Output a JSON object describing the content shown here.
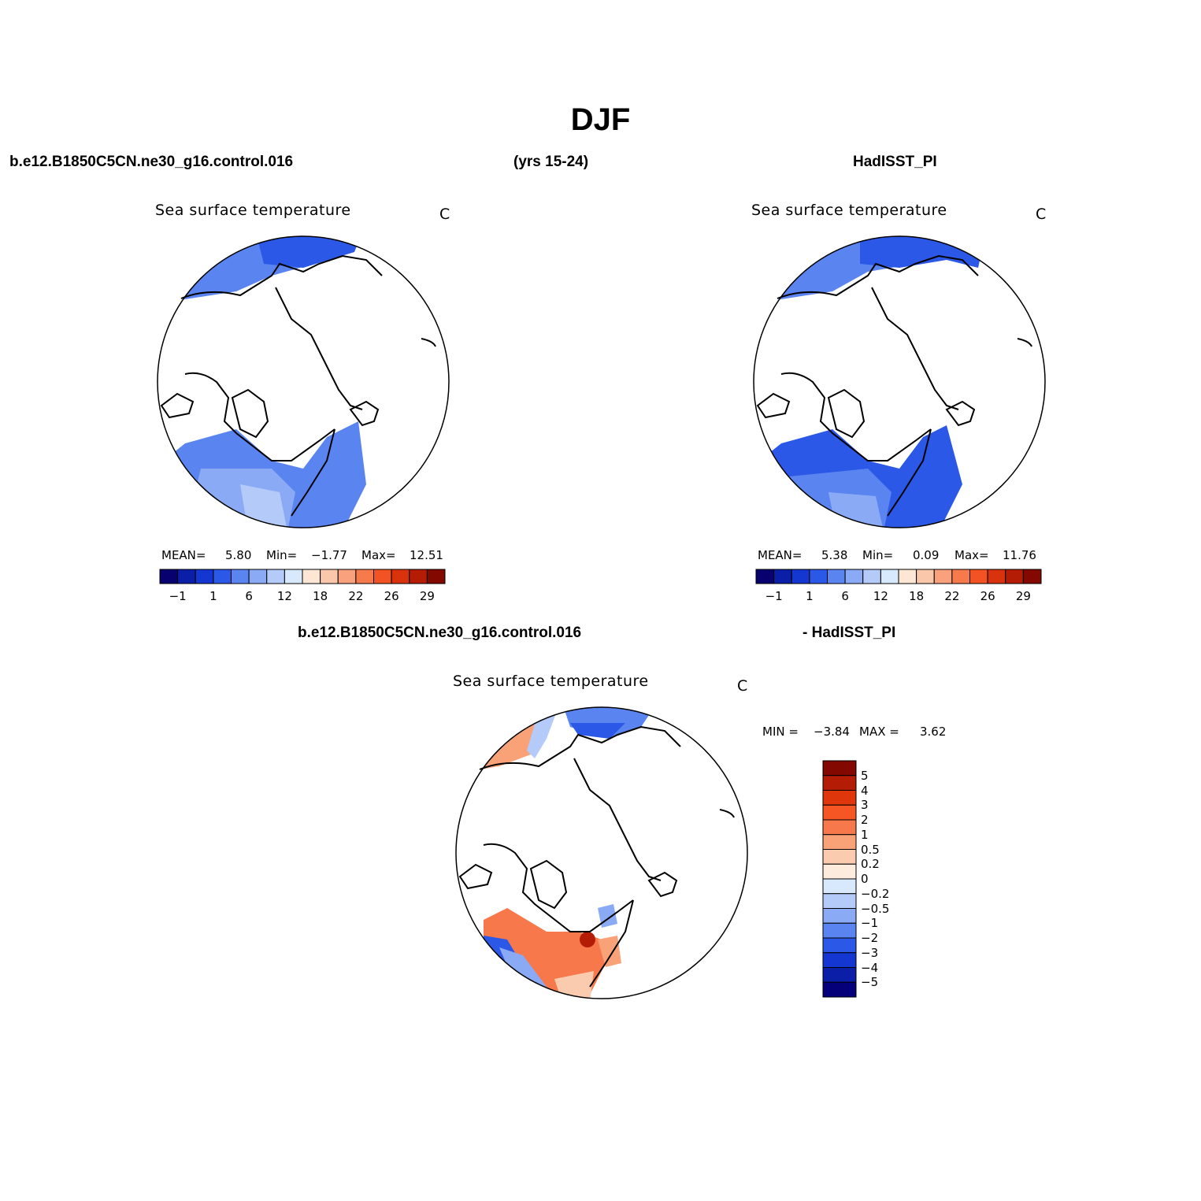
{
  "main_title": "DJF",
  "top_left_header": "b.e12.B1850C5CN.ne30_g16.control.016",
  "top_center_header": "(yrs 15-24)",
  "top_right_header": "HadISST_PI",
  "panels": [
    {
      "title": "Sea surface temperature",
      "units": "C",
      "mean_label": "MEAN=",
      "mean": "5.80",
      "min_label": "Min=",
      "min": "−1.77",
      "max_label": "Max=",
      "max": "12.51"
    },
    {
      "title": "Sea surface temperature",
      "units": "C",
      "mean_label": "MEAN=",
      "mean": "5.38",
      "min_label": "Min=",
      "min": "0.09",
      "max_label": "Max=",
      "max": "11.76"
    }
  ],
  "diff_left_header": "b.e12.B1850C5CN.ne30_g16.control.016",
  "diff_right_header": "- HadISST_PI",
  "diff_panel": {
    "title": "Sea surface temperature",
    "units": "C",
    "min_label": "MIN =",
    "min": "−3.84",
    "max_label": "MAX =",
    "max": "3.62"
  },
  "abs_colorbar": {
    "colors": [
      "#08006e",
      "#0a1ea8",
      "#1437d2",
      "#2b58e6",
      "#5a84f0",
      "#8aaaf6",
      "#b4cbfa",
      "#d8e8fd",
      "#fde6d4",
      "#fbc7ab",
      "#f9a17c",
      "#f77a4c",
      "#f25224",
      "#d9330e",
      "#b51c06",
      "#820800"
    ],
    "labels": [
      "−1",
      "1",
      "6",
      "12",
      "18",
      "22",
      "26",
      "29"
    ]
  },
  "diff_colorbar": {
    "colors": [
      "#820800",
      "#b51c06",
      "#e0360c",
      "#f65524",
      "#f7784a",
      "#f9a278",
      "#fbcbb0",
      "#fdebdd",
      "#d8e8fd",
      "#b4cbfa",
      "#8aaaf6",
      "#5a84f0",
      "#2b58e6",
      "#1437d2",
      "#0a1ea8",
      "#05007a"
    ],
    "labels": [
      "5",
      "4",
      "3",
      "2",
      "1",
      "0.5",
      "0.2",
      "0",
      "−0.2",
      "−0.5",
      "−1",
      "−2",
      "−3",
      "−4",
      "−5"
    ]
  }
}
